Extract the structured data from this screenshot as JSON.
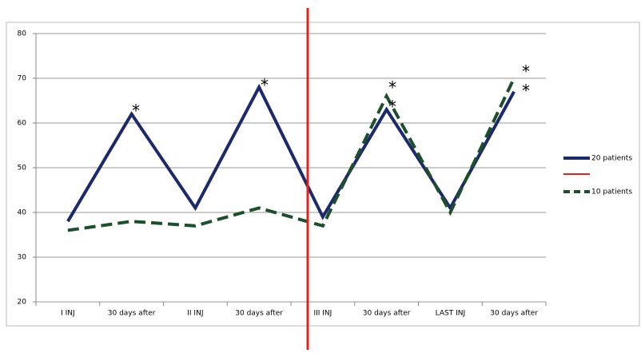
{
  "chart_data": {
    "type": "line",
    "categories": [
      "I INJ",
      "30 days after",
      "II INJ",
      "30 days after",
      "III INJ",
      "30 days after",
      "LAST INJ",
      "30 days after"
    ],
    "series": [
      {
        "name": "20 patients",
        "color": "#1c2a6b",
        "dashed": false,
        "values": [
          38,
          62,
          41,
          68,
          39,
          63,
          41,
          67
        ]
      },
      {
        "name": "10 patients",
        "color": "#1d4f2c",
        "dashed": true,
        "values": [
          36,
          38,
          37,
          41,
          37,
          66,
          40,
          70
        ]
      }
    ],
    "ylim": [
      20,
      80
    ],
    "yticks": [
      20,
      30,
      40,
      50,
      60,
      70,
      80
    ],
    "grid": true,
    "annotations": [
      "*",
      "*",
      "*",
      "*",
      "*",
      "*"
    ]
  }
}
